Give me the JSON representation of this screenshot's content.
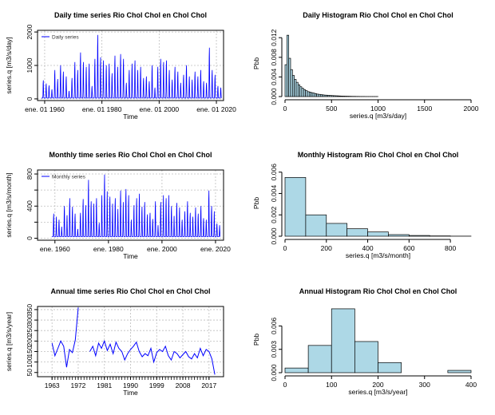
{
  "colors": {
    "series": "#0000ff",
    "hist_fill": "#add8e6",
    "grid": "#bebebe",
    "axis": "#000000"
  },
  "chart_data": [
    {
      "id": "daily_ts",
      "type": "line",
      "title": "Daily time series Rio Chol Chol en Chol Chol",
      "xlabel": "Time",
      "ylabel": "series.q [m3/s/day]",
      "legend": "Daily series",
      "legend_position": "top-left",
      "grid": true,
      "xlim": [
        1957.5,
        2022.5
      ],
      "ylim": [
        -50,
        2050
      ],
      "xticks": [
        1960,
        1980,
        2000,
        2020
      ],
      "xtick_labels": [
        "ene. 01 1960",
        "ene. 01 1980",
        "ene. 01 2000",
        "ene. 01 2020"
      ],
      "yticks": [
        0,
        1000,
        2000
      ],
      "ytick_labels": [
        "0",
        "1000",
        "2000"
      ],
      "start": 1958.8,
      "end": 2021.8,
      "points_per_year": 12,
      "base": 25,
      "peaks": [
        [
          1958,
          620
        ],
        [
          1959,
          580
        ],
        [
          1960,
          480
        ],
        [
          1961,
          420
        ],
        [
          1962,
          300
        ],
        [
          1963,
          900
        ],
        [
          1964,
          620
        ],
        [
          1965,
          1050
        ],
        [
          1966,
          850
        ],
        [
          1967,
          700
        ],
        [
          1968,
          250
        ],
        [
          1969,
          650
        ],
        [
          1970,
          1150
        ],
        [
          1971,
          900
        ],
        [
          1972,
          1450
        ],
        [
          1973,
          1150
        ],
        [
          1974,
          1000
        ],
        [
          1975,
          1100
        ],
        [
          1976,
          400
        ],
        [
          1977,
          1250
        ],
        [
          1978,
          2000
        ],
        [
          1979,
          1300
        ],
        [
          1980,
          1200
        ],
        [
          1981,
          1050
        ],
        [
          1982,
          1100
        ],
        [
          1983,
          800
        ],
        [
          1984,
          1350
        ],
        [
          1985,
          1000
        ],
        [
          1986,
          1400
        ],
        [
          1987,
          1250
        ],
        [
          1988,
          500
        ],
        [
          1989,
          900
        ],
        [
          1990,
          1100
        ],
        [
          1991,
          1200
        ],
        [
          1992,
          900
        ],
        [
          1993,
          1000
        ],
        [
          1994,
          650
        ],
        [
          1995,
          700
        ],
        [
          1996,
          550
        ],
        [
          1997,
          1050
        ],
        [
          1998,
          350
        ],
        [
          1999,
          1000
        ],
        [
          2000,
          1250
        ],
        [
          2001,
          1150
        ],
        [
          2002,
          1200
        ],
        [
          2003,
          900
        ],
        [
          2004,
          600
        ],
        [
          2005,
          1000
        ],
        [
          2006,
          850
        ],
        [
          2007,
          500
        ],
        [
          2008,
          750
        ],
        [
          2009,
          1050
        ],
        [
          2010,
          700
        ],
        [
          2011,
          600
        ],
        [
          2012,
          850
        ],
        [
          2013,
          700
        ],
        [
          2014,
          900
        ],
        [
          2015,
          550
        ],
        [
          2016,
          500
        ],
        [
          2017,
          1600
        ],
        [
          2018,
          900
        ],
        [
          2019,
          750
        ],
        [
          2020,
          400
        ],
        [
          2021,
          350
        ]
      ]
    },
    {
      "id": "daily_hist",
      "type": "bar",
      "title": "Daily Histogram Rio Chol Chol en Chol Chol",
      "xlabel": "series.q [m3/s/day]",
      "ylabel": "Pbb",
      "xlim": [
        0,
        2000
      ],
      "ylim": [
        0,
        0.0135
      ],
      "xticks": [
        0,
        500,
        1000,
        1500,
        2000
      ],
      "xtick_labels": [
        "0",
        "500",
        "1000",
        "1500",
        "2000"
      ],
      "yticks": [
        0,
        0.004,
        0.008,
        0.012
      ],
      "ytick_labels": [
        "0.000",
        "0.004",
        "0.008",
        "0.012"
      ],
      "bin_width": 20,
      "bin_start": 0,
      "values": [
        0.0065,
        0.0125,
        0.0078,
        0.0055,
        0.0043,
        0.0035,
        0.0029,
        0.0024,
        0.002,
        0.0017,
        0.0014,
        0.0012,
        0.001,
        0.0009,
        0.0008,
        0.0007,
        0.0006,
        0.0005,
        0.00045,
        0.0004,
        0.00035,
        0.0003,
        0.00028,
        0.00025,
        0.00022,
        0.0002,
        0.00018,
        0.00016,
        0.00014,
        0.00012,
        0.0001,
        9e-05,
        8e-05,
        7e-05,
        6e-05,
        5e-05,
        4e-05,
        4e-05,
        3e-05,
        3e-05,
        2e-05,
        2e-05,
        2e-05,
        1e-05,
        1e-05,
        1e-05,
        1e-05,
        1e-05,
        1e-05,
        1e-05
      ]
    },
    {
      "id": "monthly_ts",
      "type": "line",
      "title": "Monthly time series Rio Chol Chol en Chol Chol",
      "xlabel": "Time",
      "ylabel": "series.q [m3/s/month]",
      "legend": "Monthly series",
      "legend_position": "top-left",
      "grid": true,
      "xlim": [
        1953.5,
        2023
      ],
      "ylim": [
        -25,
        850
      ],
      "xticks": [
        1960,
        1980,
        2000,
        2020
      ],
      "xtick_labels": [
        "ene. 1960",
        "ene. 1980",
        "ene. 2000",
        "ene. 2020"
      ],
      "yticks": [
        0,
        200,
        400,
        600,
        800
      ],
      "ytick_labels": [
        "0",
        "",
        "400",
        "",
        "800"
      ],
      "start": 1958.8,
      "end": 2021.8,
      "points_per_year": 12,
      "base": 20,
      "peaks": [
        [
          1958,
          230
        ],
        [
          1959,
          320
        ],
        [
          1960,
          280
        ],
        [
          1961,
          240
        ],
        [
          1962,
          150
        ],
        [
          1963,
          420
        ],
        [
          1964,
          300
        ],
        [
          1965,
          520
        ],
        [
          1966,
          410
        ],
        [
          1967,
          320
        ],
        [
          1968,
          120
        ],
        [
          1969,
          330
        ],
        [
          1970,
          510
        ],
        [
          1971,
          430
        ],
        [
          1972,
          760
        ],
        [
          1973,
          480
        ],
        [
          1974,
          450
        ],
        [
          1975,
          520
        ],
        [
          1976,
          200
        ],
        [
          1977,
          560
        ],
        [
          1978,
          830
        ],
        [
          1979,
          610
        ],
        [
          1980,
          540
        ],
        [
          1981,
          450
        ],
        [
          1982,
          520
        ],
        [
          1983,
          380
        ],
        [
          1984,
          620
        ],
        [
          1985,
          470
        ],
        [
          1986,
          640
        ],
        [
          1987,
          560
        ],
        [
          1988,
          240
        ],
        [
          1989,
          430
        ],
        [
          1990,
          520
        ],
        [
          1991,
          580
        ],
        [
          1992,
          410
        ],
        [
          1993,
          470
        ],
        [
          1994,
          310
        ],
        [
          1995,
          330
        ],
        [
          1996,
          250
        ],
        [
          1997,
          480
        ],
        [
          1998,
          170
        ],
        [
          1999,
          470
        ],
        [
          2000,
          560
        ],
        [
          2001,
          520
        ],
        [
          2002,
          560
        ],
        [
          2003,
          420
        ],
        [
          2004,
          290
        ],
        [
          2005,
          460
        ],
        [
          2006,
          400
        ],
        [
          2007,
          240
        ],
        [
          2008,
          350
        ],
        [
          2009,
          480
        ],
        [
          2010,
          330
        ],
        [
          2011,
          280
        ],
        [
          2012,
          400
        ],
        [
          2013,
          320
        ],
        [
          2014,
          420
        ],
        [
          2015,
          260
        ],
        [
          2016,
          240
        ],
        [
          2017,
          620
        ],
        [
          2018,
          420
        ],
        [
          2019,
          350
        ],
        [
          2020,
          190
        ],
        [
          2021,
          170
        ]
      ]
    },
    {
      "id": "monthly_hist",
      "type": "bar",
      "title": "Monthly Histogram Rio Chol Chol en Chol Chol",
      "xlabel": "series.q [m3/s/month]",
      "ylabel": "Pbb",
      "xlim": [
        0,
        900
      ],
      "ylim": [
        0,
        0.0062
      ],
      "xticks": [
        0,
        200,
        400,
        600,
        800
      ],
      "xtick_labels": [
        "0",
        "200",
        "400",
        "600",
        "800"
      ],
      "yticks": [
        0,
        0.002,
        0.004,
        0.006
      ],
      "ytick_labels": [
        "0.000",
        "0.002",
        "0.004",
        "0.006"
      ],
      "bin_width": 100,
      "bin_start": 0,
      "values": [
        0.0055,
        0.002,
        0.0012,
        0.0007,
        0.0004,
        0.00015,
        7e-05,
        3e-05,
        1e-05
      ]
    },
    {
      "id": "annual_ts",
      "type": "line",
      "title": "Annual time series Rio Chol Chol en Chol Chol",
      "xlabel": "Time",
      "ylabel": "series.q [m3/s/year]",
      "grid": true,
      "xlim": [
        1958,
        2022
      ],
      "ylim": [
        30,
        365
      ],
      "xticks": [
        1963,
        1972,
        1981,
        1990,
        1999,
        2008,
        2017
      ],
      "xtick_labels": [
        "1963",
        "1972",
        "1981",
        "1990",
        "1999",
        "2008",
        "2017"
      ],
      "minor_xtick_step": 1,
      "yticks": [
        50,
        100,
        150,
        200,
        250,
        300,
        350
      ],
      "ytick_labels": [
        "50",
        "100",
        "150",
        "200",
        "250",
        "300",
        "350"
      ],
      "segments": [
        {
          "x": [
            1963,
            1964,
            1965,
            1966,
            1967,
            1968,
            1969,
            1970,
            1971,
            1972
          ],
          "y": [
            190,
            130,
            165,
            200,
            175,
            75,
            160,
            145,
            205,
            360
          ]
        },
        {
          "x": [
            1976,
            1977,
            1978,
            1979,
            1980,
            1981,
            1982,
            1983,
            1984,
            1985,
            1986,
            1987,
            1988,
            1989,
            1990,
            1991,
            1992,
            1993,
            1994,
            1995,
            1996,
            1997,
            1998,
            1999,
            2000,
            2001,
            2002,
            2003,
            2004,
            2005,
            2006,
            2007,
            2008,
            2009,
            2010,
            2011,
            2012,
            2013,
            2014,
            2015,
            2016,
            2017,
            2018,
            2019
          ],
          "y": [
            150,
            175,
            130,
            190,
            165,
            200,
            155,
            185,
            140,
            195,
            165,
            150,
            110,
            140,
            160,
            175,
            195,
            150,
            125,
            140,
            130,
            165,
            100,
            145,
            160,
            150,
            175,
            130,
            110,
            150,
            140,
            120,
            135,
            150,
            125,
            115,
            140,
            120,
            165,
            130,
            160,
            150,
            115,
            40
          ]
        }
      ]
    },
    {
      "id": "annual_hist",
      "type": "bar",
      "title": "Annual Histogram Rio Chol Chol en Chol Chol",
      "xlabel": "series.q [m3/s/year]",
      "ylabel": "Pbb",
      "xlim": [
        0,
        400
      ],
      "ylim": [
        0,
        0.0085
      ],
      "xticks": [
        0,
        100,
        200,
        300,
        400
      ],
      "xtick_labels": [
        "0",
        "100",
        "200",
        "300",
        "400"
      ],
      "yticks": [
        0,
        0.003,
        0.006
      ],
      "ytick_labels": [
        "0.000",
        "0.003",
        "0.006"
      ],
      "bin_width": 50,
      "bin_start": 0,
      "values": [
        0.0006,
        0.0035,
        0.0082,
        0.004,
        0.0013,
        0.0,
        0.0,
        0.0003
      ]
    }
  ]
}
